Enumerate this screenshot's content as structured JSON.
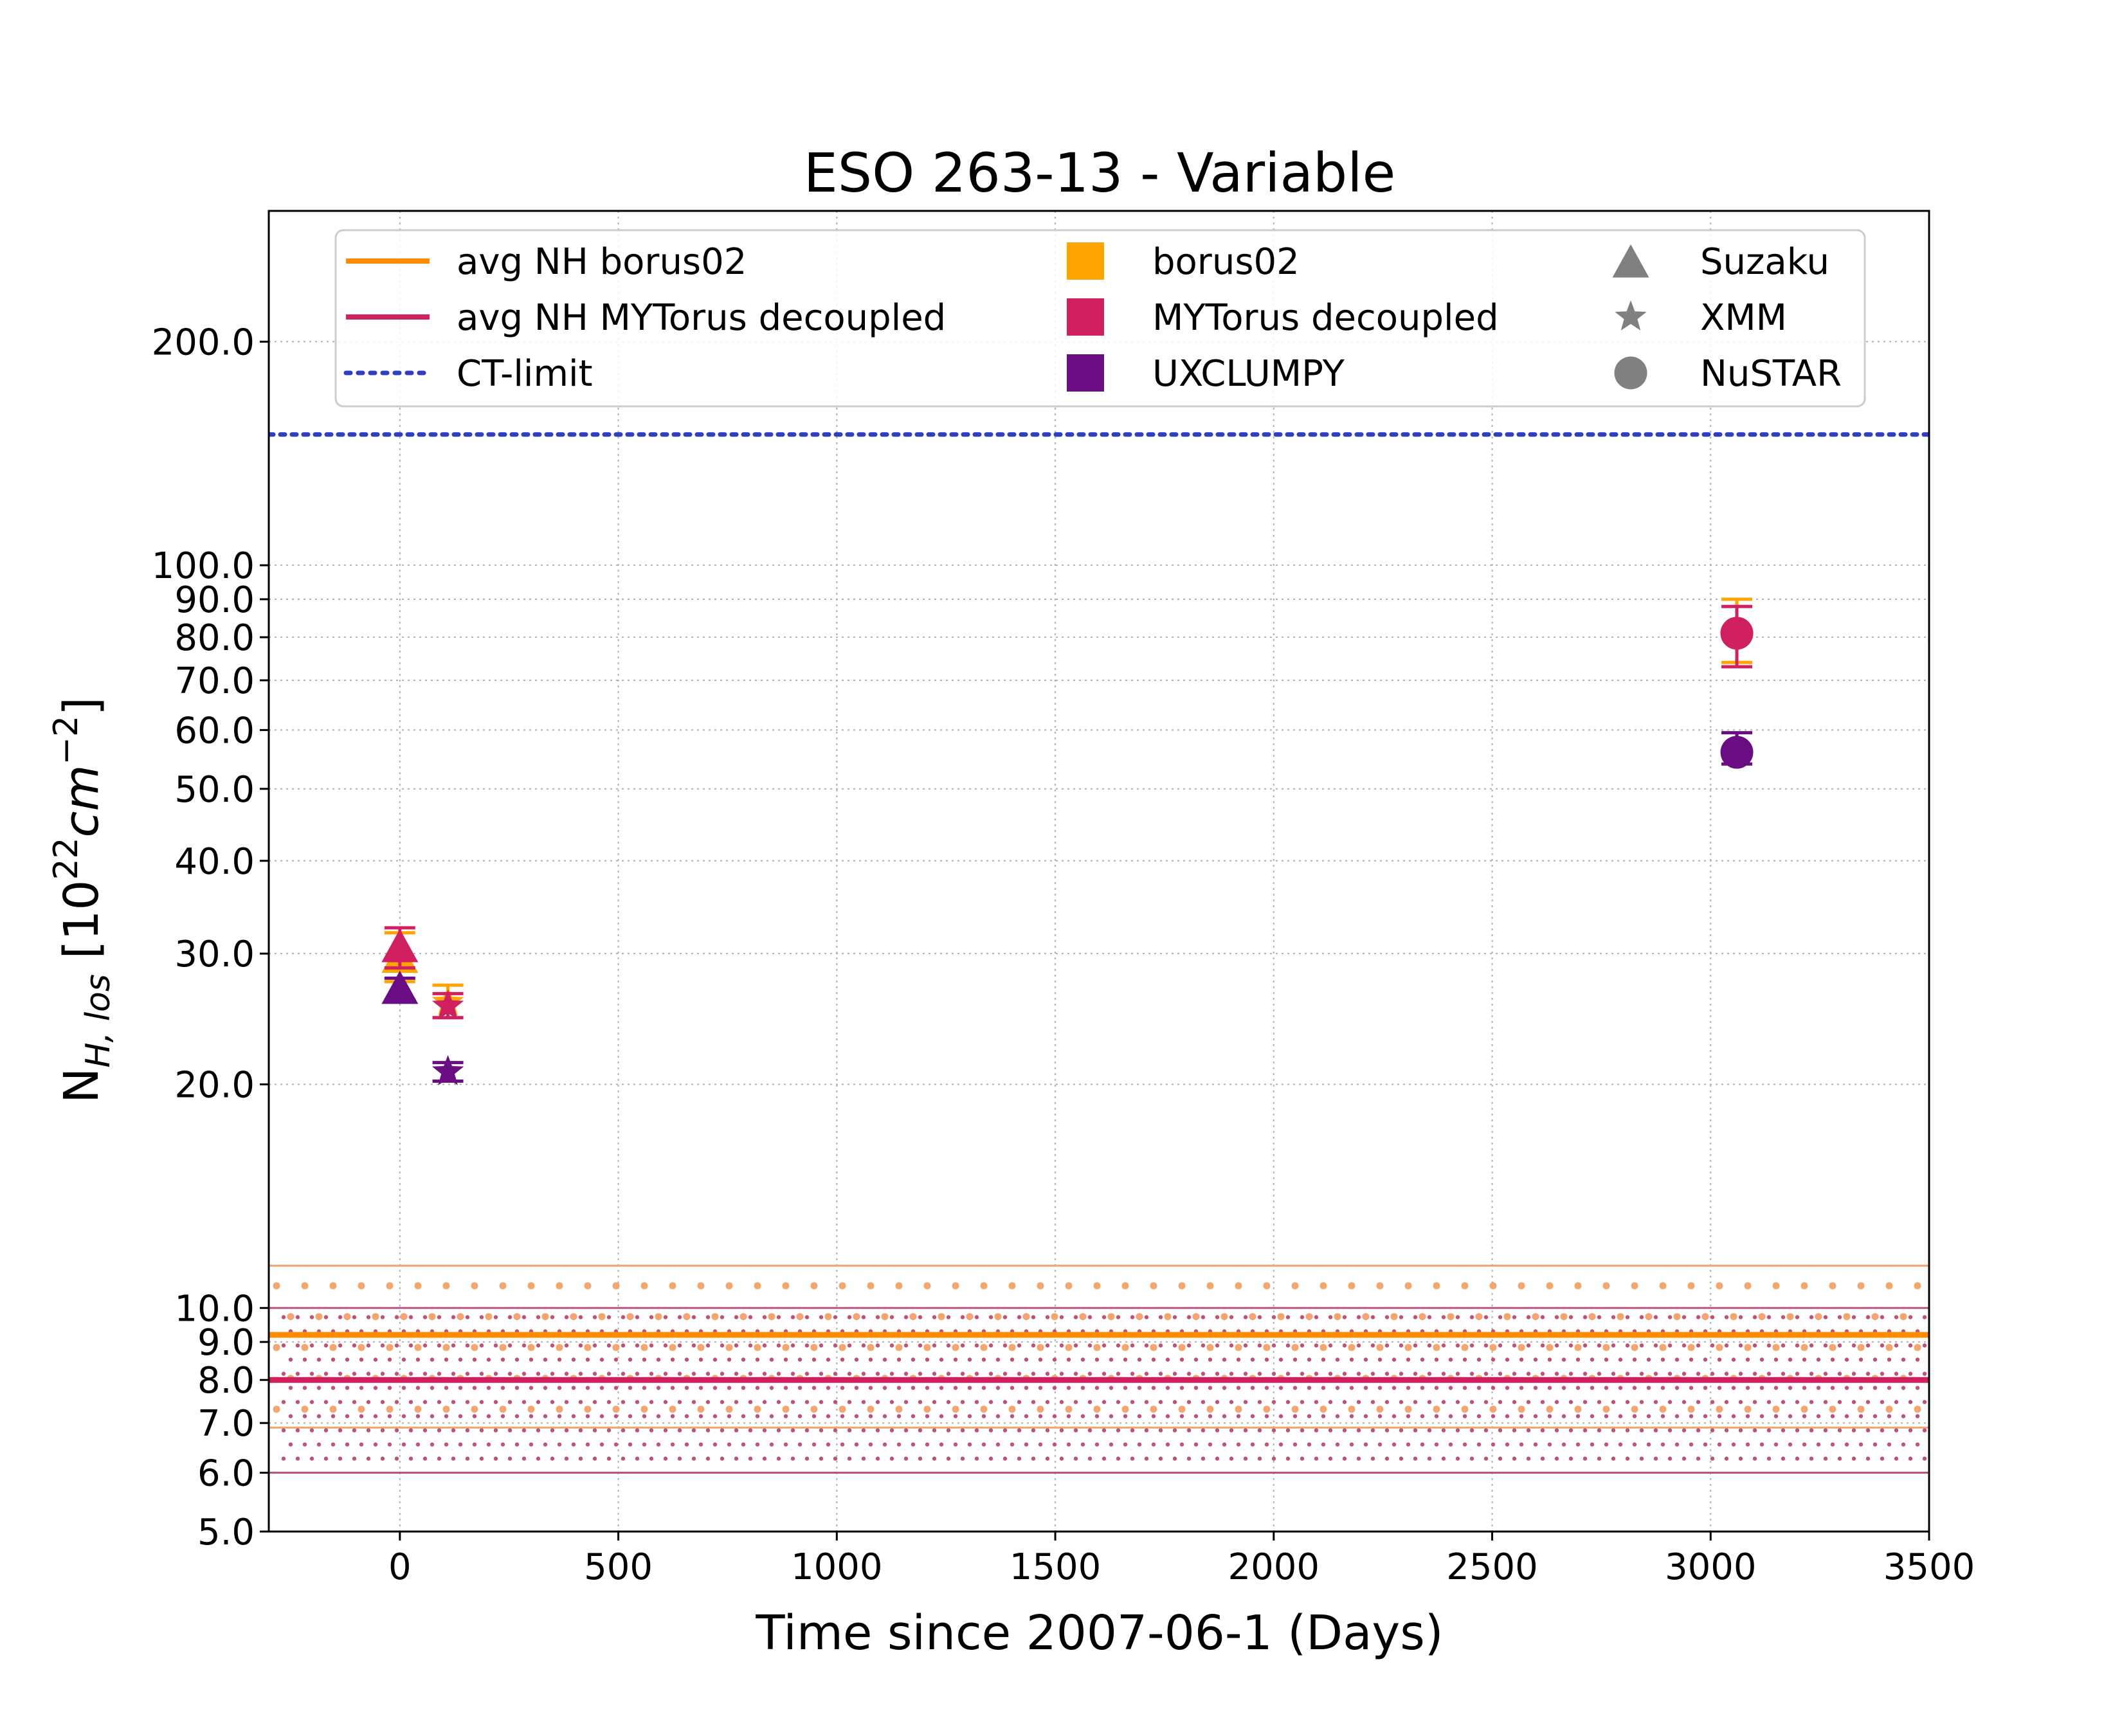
{
  "chart_data": {
    "type": "scatter",
    "title": "ESO 263-13 - Variable",
    "xlabel": "Time since 2007-06-1 (Days)",
    "ylabel": {
      "base": "N",
      "sub": "H, los",
      "unit_prefix": " [10",
      "exp1": "22",
      "cm": "cm",
      "exp2": "−2",
      "unit_suffix": "]"
    },
    "x_scale": "linear",
    "y_scale": "log",
    "xlim": [
      -300,
      3500
    ],
    "ylim": [
      5.0,
      300.0
    ],
    "x_ticks": [
      0,
      500,
      1000,
      1500,
      2000,
      2500,
      3000,
      3500
    ],
    "x_tick_labels": [
      "0",
      "500",
      "1000",
      "1500",
      "2000",
      "2500",
      "3000",
      "3500"
    ],
    "y_ticks": [
      5,
      6,
      7,
      8,
      9,
      10,
      20,
      30,
      40,
      50,
      60,
      70,
      80,
      90,
      100,
      200
    ],
    "y_tick_labels": [
      "5.0",
      "6.0",
      "7.0",
      "8.0",
      "9.0",
      "10.0",
      "20.0",
      "30.0",
      "40.0",
      "50.0",
      "60.0",
      "70.0",
      "80.0",
      "90.0",
      "100.0",
      "200.0"
    ],
    "grid": true,
    "legend_position": "top",
    "horizontal_lines": [
      {
        "name": "avg NH borus02",
        "y": 9.2,
        "band": [
          6.9,
          11.4
        ],
        "color": "#ff8c00",
        "band_color": "#f5a66e",
        "style": "solid"
      },
      {
        "name": "avg NH MYTorus decoupled",
        "y": 8.0,
        "band": [
          6.0,
          10.0
        ],
        "color": "#d02060",
        "band_color": "#c0507e",
        "style": "solid"
      },
      {
        "name": "CT-limit",
        "y": 150,
        "color": "#2f3fc0",
        "style": "dotted"
      }
    ],
    "series": [
      {
        "name": "borus02",
        "color": "#ffa500",
        "points": [
          {
            "x": 0,
            "y": 29.5,
            "err_lo": 2.0,
            "err_hi": 2.5,
            "instrument": "Suzaku"
          },
          {
            "x": 110,
            "y": 25.8,
            "err_lo": 1.2,
            "err_hi": 1.4,
            "instrument": "XMM"
          },
          {
            "x": 3060,
            "y": 81,
            "err_lo": 7,
            "err_hi": 9,
            "instrument": "NuSTAR"
          }
        ]
      },
      {
        "name": "MYTorus decoupled",
        "color": "#d02060",
        "points": [
          {
            "x": 0,
            "y": 30.5,
            "err_lo": 1.8,
            "err_hi": 2.0,
            "instrument": "Suzaku"
          },
          {
            "x": 110,
            "y": 25.5,
            "err_lo": 0.9,
            "err_hi": 1.0,
            "instrument": "XMM"
          },
          {
            "x": 3060,
            "y": 81,
            "err_lo": 8,
            "err_hi": 7,
            "instrument": "NuSTAR"
          }
        ]
      },
      {
        "name": "UXCLUMPY",
        "color": "#6a0d83",
        "points": [
          {
            "x": 0,
            "y": 26.8,
            "err_lo": 0.8,
            "err_hi": 1.0,
            "instrument": "Suzaku"
          },
          {
            "x": 110,
            "y": 20.8,
            "err_lo": 0.6,
            "err_hi": 0.6,
            "instrument": "XMM"
          },
          {
            "x": 3060,
            "y": 56,
            "err_lo": 2.0,
            "err_hi": 3.5,
            "instrument": "NuSTAR"
          }
        ]
      }
    ],
    "legend": {
      "lines": [
        {
          "label": "avg NH borus02",
          "color": "#ff8c00",
          "style": "solid"
        },
        {
          "label": "avg NH MYTorus decoupled",
          "color": "#d02060",
          "style": "solid"
        },
        {
          "label": "CT-limit",
          "color": "#2f3fc0",
          "style": "dotted"
        }
      ],
      "models": [
        {
          "label": "borus02",
          "color": "#ffa500"
        },
        {
          "label": "MYTorus decoupled",
          "color": "#d02060"
        },
        {
          "label": "UXCLUMPY",
          "color": "#6a0d83"
        }
      ],
      "instruments": [
        {
          "label": "Suzaku",
          "marker": "triangle"
        },
        {
          "label": "XMM",
          "marker": "star"
        },
        {
          "label": "NuSTAR",
          "marker": "circle"
        }
      ],
      "marker_color": "#808080"
    }
  }
}
